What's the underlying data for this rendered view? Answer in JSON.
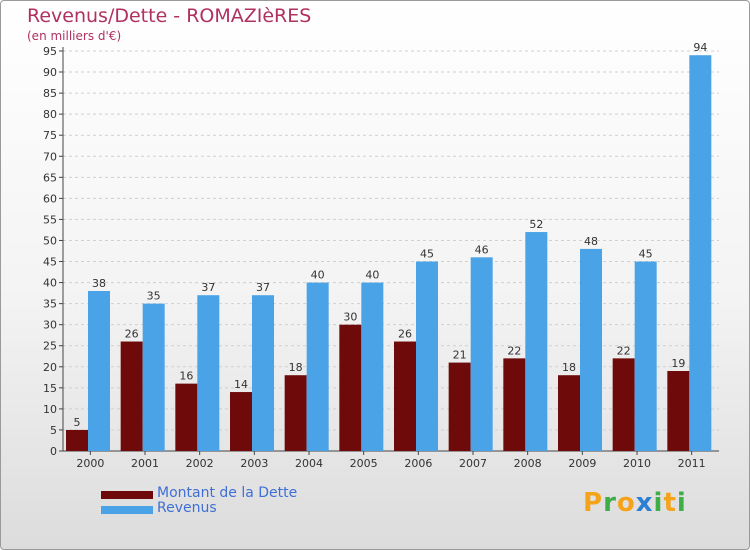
{
  "header": {
    "title": "Revenus/Dette - ROMAZIèRES",
    "subtitle": "(en milliers d'€)"
  },
  "chart_data": {
    "type": "bar",
    "categories": [
      "2000",
      "2001",
      "2002",
      "2003",
      "2004",
      "2005",
      "2006",
      "2007",
      "2008",
      "2009",
      "2010",
      "2011"
    ],
    "series": [
      {
        "name": "Montant de la Dette",
        "color": "#6e0a0a",
        "values": [
          5,
          26,
          16,
          14,
          18,
          30,
          26,
          21,
          22,
          18,
          22,
          19
        ]
      },
      {
        "name": "Revenus",
        "color": "#4aa3e6",
        "values": [
          38,
          35,
          37,
          37,
          40,
          40,
          45,
          46,
          52,
          48,
          45,
          94
        ]
      }
    ],
    "ylim": [
      0,
      95
    ],
    "ytick_step": 5,
    "grid": true,
    "legend_position": "bottom-left"
  },
  "legend": {
    "items": [
      {
        "label": "Montant de la Dette",
        "color": "#6e0a0a"
      },
      {
        "label": "Revenus",
        "color": "#4aa3e6"
      }
    ]
  },
  "brand": {
    "letters": [
      {
        "ch": "P",
        "color": "#f4a31b"
      },
      {
        "ch": "r",
        "color": "#3fae49"
      },
      {
        "ch": "o",
        "color": "#f4a31b"
      },
      {
        "ch": "x",
        "color": "#2b7fd4"
      },
      {
        "ch": "i",
        "color": "#3fae49"
      },
      {
        "ch": "t",
        "color": "#f4a31b"
      },
      {
        "ch": "i",
        "color": "#3fae49"
      }
    ]
  }
}
